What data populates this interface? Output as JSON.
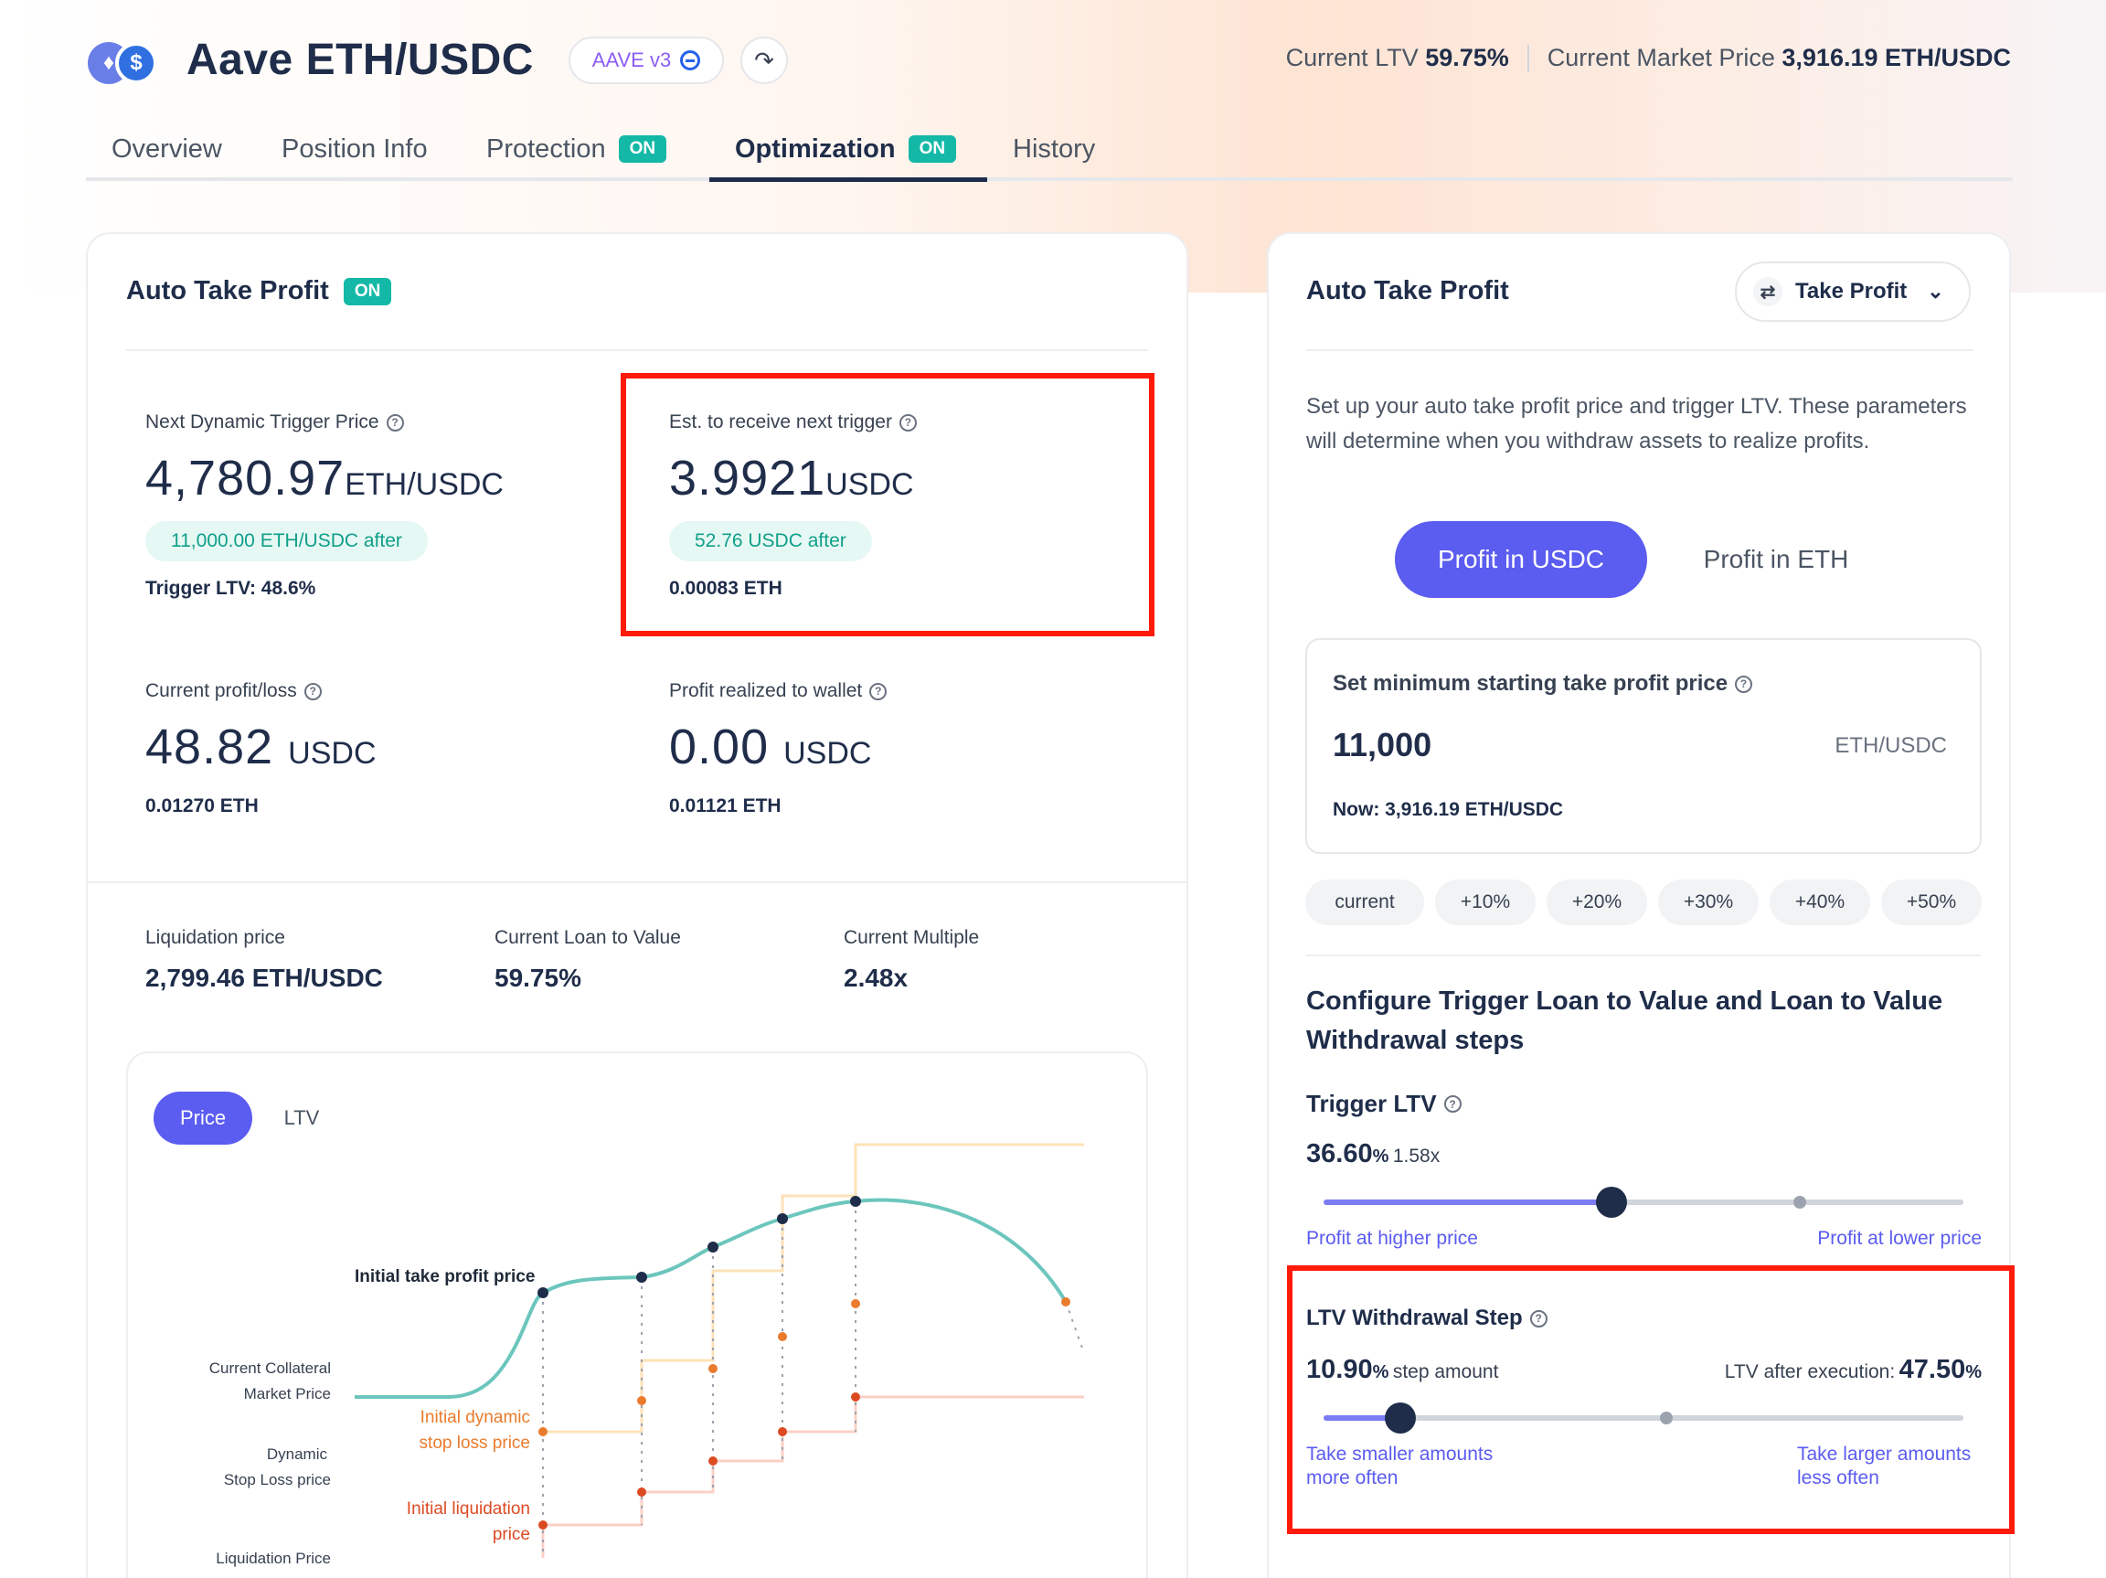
{
  "header": {
    "title": "Aave ETH/USDC",
    "protocol_label": "AAVE v3",
    "current_ltv_label": "Current LTV",
    "current_ltv_value": "59.75%",
    "market_price_label": "Current Market Price",
    "market_price_value": "3,916.19 ETH/USDC"
  },
  "tabs": [
    {
      "label": "Overview"
    },
    {
      "label": "Position Info"
    },
    {
      "label": "Protection",
      "badge": "ON"
    },
    {
      "label": "Optimization",
      "badge": "ON"
    },
    {
      "label": "History"
    }
  ],
  "left_card": {
    "title": "Auto Take Profit",
    "badge": "ON",
    "next_trigger": {
      "label": "Next Dynamic Trigger Price",
      "value": "4,780.97",
      "unit": "ETH/USDC",
      "after": "11,000.00 ETH/USDC after",
      "trigger_ltv": "Trigger LTV: 48.6%"
    },
    "est_receive": {
      "label": "Est. to receive next trigger",
      "value": "3.9921",
      "unit": "USDC",
      "after": "52.76 USDC after",
      "eth": "0.00083 ETH"
    },
    "profit_loss": {
      "label": "Current profit/loss",
      "value": "48.82",
      "unit": "USDC",
      "eth": "0.01270 ETH"
    },
    "realized": {
      "label": "Profit realized to wallet",
      "value": "0.00",
      "unit": "USDC",
      "eth": "0.01121 ETH"
    },
    "metrics": [
      {
        "label": "Liquidation price",
        "value": "2,799.46 ETH/USDC"
      },
      {
        "label": "Current Loan to Value",
        "value": "59.75%"
      },
      {
        "label": "Current Multiple",
        "value": "2.48x"
      }
    ],
    "chart": {
      "tabs": [
        "Price",
        "LTV"
      ],
      "labels": {
        "initial_take_profit": "Initial take profit price",
        "collateral_line1": "Current Collateral",
        "collateral_line2": "Market Price",
        "dyn_stop_line1": "Initial dynamic",
        "dyn_stop_line2": "stop loss price",
        "dynamic_line1": "Dynamic",
        "dynamic_line2": "Stop Loss price",
        "init_liq_line1": "Initial liquidation",
        "init_liq_line2": "price",
        "liq_price": "Liquidation Price"
      }
    }
  },
  "right_card": {
    "title": "Auto Take Profit",
    "selector_label": "Take Profit",
    "description": "Set up your auto take profit price and trigger LTV. These parameters will determine when you withdraw assets to realize profits.",
    "profit_usdc": "Profit in USDC",
    "profit_eth": "Profit in ETH",
    "min_price": {
      "label": "Set minimum starting take profit price",
      "value": "11,000",
      "unit": "ETH/USDC",
      "now": "Now: 3,916.19 ETH/USDC"
    },
    "chips": [
      "current",
      "+10%",
      "+20%",
      "+30%",
      "+40%",
      "+50%"
    ],
    "configure_title_line1": "Configure Trigger Loan to Value and Loan to Value",
    "configure_title_line2": "Withdrawal steps",
    "trigger_ltv": {
      "label": "Trigger LTV",
      "value": "36.60",
      "pct": "%",
      "multiple": "1.58x",
      "slider_level": 0.45,
      "left_hint": "Profit at higher price",
      "right_hint": "Profit at lower price"
    },
    "withdrawal_step": {
      "label": "LTV Withdrawal Step",
      "value": "10.90",
      "pct": "%",
      "suffix": "step amount",
      "after_label": "LTV after execution:",
      "after_value": "47.50",
      "after_pct": "%",
      "slider_level": 0.12,
      "left_hint_1": "Take smaller amounts",
      "left_hint_2": "more often",
      "right_hint_1": "Take larger amounts",
      "right_hint_2": "less often"
    }
  },
  "colors": {
    "accent": "#5b5cf0",
    "teal": "#14b8a6",
    "highlight_red": "#ff1a0a",
    "navy": "#1f2d4a"
  }
}
